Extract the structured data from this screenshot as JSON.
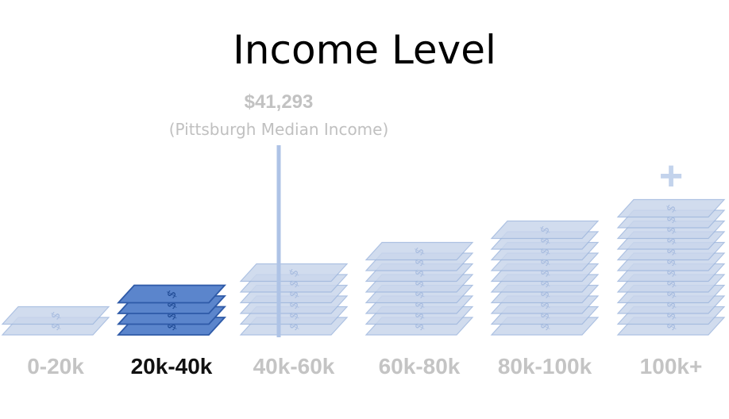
{
  "chart_data": {
    "type": "bar",
    "title": "Income Level",
    "categories": [
      "0-20k",
      "20k-40k",
      "40k-60k",
      "60k-80k",
      "80k-100k",
      "100k+"
    ],
    "values": [
      2,
      4,
      6,
      8,
      10,
      12
    ],
    "highlighted_category": "20k-40k",
    "overflow_marker": "+",
    "bill_glyph": "$",
    "annotation": {
      "value_label": "$41,293",
      "text": "(Pittsburgh Median Income)",
      "x_value": 41293
    },
    "colors": {
      "highlight_fill": "#5b85cc",
      "highlight_stroke": "#2e5aa8",
      "muted_fill": "#cad7ec",
      "muted_stroke": "#9fb7dd",
      "median_line": "#aec3e6",
      "highlight_label": "#111111",
      "muted_label": "#c4c4c4"
    },
    "grid": false,
    "legend": "none"
  }
}
